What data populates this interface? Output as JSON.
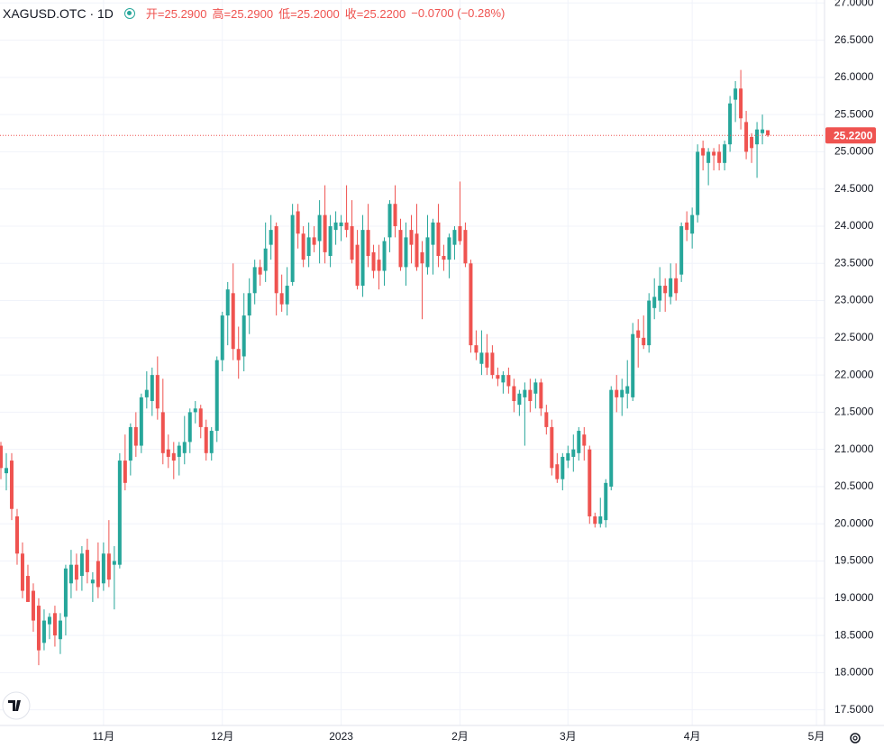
{
  "header": {
    "symbol": "XAGUSD.OTC · 1D",
    "fields": [
      "开=25.2900",
      "高=25.2900",
      "低=25.2000",
      "收=25.2200"
    ],
    "change": "−0.0700 (−0.28%)"
  },
  "chart_data": {
    "type": "candlestick",
    "up_color": "#26a69a",
    "down_color": "#ef5350",
    "grid": true,
    "ylim": [
      17.29,
      27.04
    ],
    "yticks": [
      {
        "value": 17.5,
        "label": "17.5000"
      },
      {
        "value": 18,
        "label": "18.0000"
      },
      {
        "value": 18.5,
        "label": "18.5000"
      },
      {
        "value": 19,
        "label": "19.0000"
      },
      {
        "value": 19.5,
        "label": "19.5000"
      },
      {
        "value": 20,
        "label": "20.0000"
      },
      {
        "value": 20.5,
        "label": "20.5000"
      },
      {
        "value": 21,
        "label": "21.0000"
      },
      {
        "value": 21.5,
        "label": "21.5000"
      },
      {
        "value": 22,
        "label": "22.0000"
      },
      {
        "value": 22.5,
        "label": "22.5000"
      },
      {
        "value": 23,
        "label": "23.0000"
      },
      {
        "value": 23.5,
        "label": "23.5000"
      },
      {
        "value": 24,
        "label": "24.0000"
      },
      {
        "value": 24.5,
        "label": "24.5000"
      },
      {
        "value": 25,
        "label": "25.0000"
      },
      {
        "value": 25.5,
        "label": "25.5000"
      },
      {
        "value": 26,
        "label": "26.0000"
      },
      {
        "value": 26.5,
        "label": "26.5000"
      },
      {
        "value": 27,
        "label": "27.0000"
      }
    ],
    "last_price": {
      "value": 25.22,
      "label": "25.2200"
    },
    "categories": [
      null,
      null,
      null,
      null,
      null,
      null,
      null,
      null,
      null,
      null,
      null,
      null,
      null,
      null,
      null,
      null,
      null,
      null,
      null,
      "11月",
      null,
      null,
      null,
      null,
      null,
      null,
      null,
      null,
      null,
      null,
      null,
      null,
      null,
      null,
      null,
      null,
      null,
      null,
      null,
      null,
      null,
      "12月",
      null,
      null,
      null,
      null,
      null,
      null,
      null,
      null,
      null,
      null,
      null,
      null,
      null,
      null,
      null,
      null,
      null,
      null,
      null,
      null,
      null,
      "2023",
      null,
      null,
      null,
      null,
      null,
      null,
      null,
      null,
      null,
      null,
      null,
      null,
      null,
      null,
      null,
      null,
      null,
      null,
      null,
      null,
      null,
      "2月",
      null,
      null,
      null,
      null,
      null,
      null,
      null,
      null,
      null,
      null,
      null,
      null,
      null,
      null,
      null,
      null,
      null,
      null,
      null,
      "3月",
      null,
      null,
      null,
      null,
      null,
      null,
      null,
      null,
      null,
      null,
      null,
      null,
      null,
      null,
      null,
      null,
      null,
      null,
      null,
      null,
      null,
      null,
      "4月",
      null,
      null,
      null,
      null,
      null,
      null,
      null,
      null,
      null,
      null,
      null,
      null,
      null,
      null,
      null,
      null,
      null,
      null,
      null,
      null,
      null,
      null,
      "5月"
    ],
    "open": [
      21.05,
      20.68,
      20.85,
      20.1,
      19.6,
      19.3,
      19.1,
      18.9,
      18.4,
      18.65,
      18.8,
      18.45,
      18.75,
      19.2,
      19.45,
      19.3,
      19.65,
      19.2,
      19.5,
      19.2,
      19.6,
      19.45,
      19.45,
      20.85,
      20.85,
      21.3,
      21.05,
      21.7,
      21.65,
      22.0,
      21.5,
      21.0,
      20.95,
      20.9,
      20.95,
      21.1,
      21.5,
      21.55,
      21.3,
      20.95,
      21.25,
      22.2,
      22.8,
      23.1,
      22.35,
      22.25,
      22.8,
      23.1,
      23.45,
      23.4,
      23.75,
      24.0,
      23.1,
      22.95,
      23.25,
      24.2,
      23.9,
      23.6,
      23.85,
      23.8,
      24.15,
      23.6,
      23.95,
      24.0,
      24.05,
      24.0,
      23.75,
      23.2,
      23.95,
      23.65,
      23.55,
      23.4,
      23.85,
      24.3,
      23.95,
      23.45,
      23.95,
      23.9,
      23.65,
      23.45,
      23.75,
      24.05,
      23.6,
      23.55,
      23.75,
      24.0,
      23.95,
      23.5,
      22.4,
      22.15,
      22.3,
      22.3,
      22.0,
      21.9,
      22.0,
      21.85,
      21.6,
      21.7,
      21.8,
      21.75,
      21.9,
      21.5,
      21.3,
      20.8,
      20.6,
      20.85,
      20.9,
      20.95,
      21.2,
      21.0,
      20.1,
      20.0,
      20.05,
      20.5,
      21.8,
      21.7,
      21.75,
      21.7,
      22.6,
      22.5,
      22.4,
      22.9,
      23.0,
      23.2,
      23.05,
      23.3,
      23.35,
      24.05,
      23.9,
      24.15,
      25.05,
      24.85,
      25.0,
      25.0,
      24.85,
      25.1,
      25.7,
      25.85,
      25.4,
      25.2,
      25.1,
      25.25,
      25.29,
      null,
      null,
      null,
      null,
      null,
      null,
      null,
      null,
      null
    ],
    "high": [
      21.1,
      20.95,
      20.95,
      20.2,
      19.75,
      19.45,
      19.2,
      19.0,
      18.85,
      18.8,
      18.9,
      18.8,
      19.45,
      19.65,
      19.6,
      19.7,
      19.8,
      19.35,
      19.75,
      19.75,
      20.05,
      19.7,
      20.95,
      21.2,
      21.35,
      21.5,
      21.75,
      22.05,
      22.1,
      22.25,
      21.95,
      21.2,
      21.1,
      21.1,
      21.45,
      21.55,
      21.65,
      21.6,
      21.4,
      21.3,
      22.25,
      22.85,
      23.25,
      23.5,
      22.65,
      23.1,
      23.3,
      23.55,
      23.55,
      24.05,
      24.15,
      24.05,
      23.35,
      23.45,
      24.3,
      24.3,
      24.0,
      24.05,
      24.0,
      24.35,
      24.55,
      24.15,
      24.2,
      24.15,
      24.55,
      24.35,
      23.95,
      24.15,
      24.3,
      23.75,
      23.75,
      23.85,
      24.35,
      24.55,
      24.1,
      24.05,
      24.15,
      24.3,
      23.8,
      24.15,
      24.1,
      24.3,
      23.75,
      23.9,
      24.0,
      24.6,
      24.05,
      23.55,
      22.6,
      22.6,
      22.55,
      22.4,
      22.1,
      22.05,
      22.1,
      21.95,
      21.8,
      21.9,
      21.95,
      21.95,
      21.95,
      21.6,
      21.4,
      20.95,
      20.95,
      21.05,
      21.2,
      21.3,
      21.3,
      21.05,
      20.15,
      20.35,
      20.6,
      21.85,
      22.0,
      21.95,
      22.2,
      22.7,
      22.75,
      22.8,
      23.1,
      23.3,
      23.45,
      23.3,
      23.5,
      23.5,
      24.05,
      24.2,
      24.25,
      25.1,
      25.15,
      25.05,
      25.05,
      25.1,
      25.15,
      25.75,
      25.95,
      26.1,
      25.55,
      25.25,
      25.4,
      25.5,
      25.29,
      null,
      null,
      null,
      null,
      null,
      null,
      null,
      null,
      null
    ],
    "low": [
      20.6,
      20.45,
      20.05,
      19.45,
      19.0,
      18.95,
      18.55,
      18.1,
      18.3,
      18.45,
      18.35,
      18.25,
      18.5,
      19.0,
      19.1,
      19.1,
      19.2,
      18.95,
      19.0,
      19.1,
      19.15,
      18.85,
      19.4,
      20.45,
      20.65,
      20.9,
      20.95,
      21.55,
      21.45,
      21.4,
      20.8,
      20.75,
      20.6,
      20.65,
      20.8,
      20.95,
      21.35,
      21.15,
      20.85,
      20.85,
      21.1,
      22.05,
      22.4,
      22.2,
      21.95,
      22.05,
      22.55,
      22.95,
      23.2,
      23.25,
      23.55,
      22.8,
      22.85,
      22.8,
      23.2,
      23.7,
      23.45,
      23.45,
      23.65,
      23.5,
      23.5,
      23.45,
      23.75,
      23.8,
      23.85,
      23.5,
      23.15,
      23.05,
      23.45,
      23.3,
      23.15,
      23.2,
      23.65,
      23.85,
      23.4,
      23.2,
      23.5,
      23.4,
      22.75,
      23.35,
      23.35,
      23.45,
      23.4,
      23.3,
      23.55,
      23.75,
      23.45,
      22.3,
      22.2,
      22.0,
      22.0,
      21.95,
      21.85,
      21.75,
      21.75,
      21.5,
      21.45,
      21.05,
      21.5,
      21.55,
      21.45,
      21.2,
      20.65,
      20.55,
      20.45,
      20.75,
      20.7,
      20.85,
      20.85,
      20.0,
      19.95,
      19.95,
      19.95,
      20.45,
      21.5,
      21.45,
      21.55,
      21.65,
      22.1,
      22.35,
      22.3,
      22.75,
      22.85,
      22.85,
      22.95,
      23.0,
      23.25,
      23.8,
      23.7,
      24.05,
      24.75,
      24.55,
      24.75,
      24.75,
      24.75,
      25.0,
      25.4,
      25.3,
      24.9,
      24.85,
      24.65,
      25.1,
      25.2,
      null,
      null,
      null,
      null,
      null,
      null,
      null,
      null,
      null
    ],
    "close": [
      20.75,
      20.75,
      20.2,
      19.6,
      19.1,
      18.95,
      18.7,
      18.3,
      18.7,
      18.75,
      18.5,
      18.7,
      19.4,
      19.45,
      19.25,
      19.6,
      19.35,
      19.25,
      19.15,
      19.6,
      19.25,
      19.5,
      20.85,
      20.55,
      21.3,
      21.05,
      21.7,
      21.8,
      22.0,
      21.55,
      20.95,
      20.9,
      20.85,
      21.05,
      21.1,
      21.5,
      21.55,
      21.3,
      20.95,
      21.25,
      22.2,
      22.8,
      23.15,
      22.35,
      22.2,
      22.8,
      23.1,
      23.45,
      23.35,
      23.7,
      23.95,
      23.1,
      22.95,
      23.2,
      24.15,
      23.9,
      23.55,
      23.85,
      23.75,
      24.15,
      23.65,
      24.0,
      24.05,
      24.05,
      23.95,
      23.55,
      23.2,
      23.95,
      23.6,
      23.4,
      23.4,
      23.8,
      24.3,
      24.0,
      23.45,
      23.85,
      23.75,
      23.45,
      23.5,
      23.85,
      24.05,
      23.6,
      23.55,
      23.85,
      23.95,
      23.8,
      23.5,
      22.4,
      22.3,
      22.3,
      22.1,
      22.0,
      21.95,
      22.0,
      21.85,
      21.65,
      21.75,
      21.8,
      21.65,
      21.9,
      21.55,
      21.3,
      20.75,
      20.6,
      20.9,
      20.95,
      21.0,
      21.25,
      21.05,
      20.1,
      20.0,
      20.1,
      20.55,
      21.8,
      21.7,
      21.8,
      21.85,
      22.55,
      22.5,
      22.4,
      23.0,
      23.05,
      23.2,
      23.1,
      23.3,
      23.1,
      24.0,
      23.95,
      24.15,
      25.0,
      24.95,
      25.0,
      24.95,
      24.85,
      25.1,
      25.65,
      25.85,
      25.45,
      25.0,
      25.05,
      25.3,
      25.3,
      25.22,
      null,
      null,
      null,
      null,
      null,
      null,
      null,
      null,
      null
    ]
  }
}
